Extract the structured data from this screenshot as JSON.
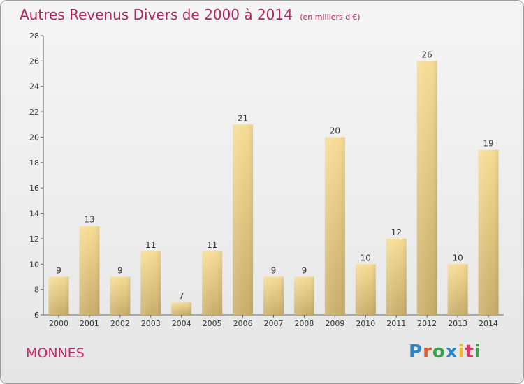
{
  "chart_data": {
    "type": "bar",
    "title": "Autres Revenus Divers de 2000 à 2014",
    "subtitle": "(en milliers d'€)",
    "categories": [
      "2000",
      "2001",
      "2002",
      "2003",
      "2004",
      "2005",
      "2006",
      "2007",
      "2008",
      "2009",
      "2010",
      "2011",
      "2012",
      "2013",
      "2014"
    ],
    "values": [
      9,
      13,
      9,
      11,
      7,
      11,
      21,
      9,
      9,
      20,
      10,
      12,
      26,
      10,
      19
    ],
    "ylim": [
      6,
      28
    ],
    "yticks": [
      6,
      8,
      10,
      12,
      14,
      16,
      18,
      20,
      22,
      24,
      26,
      28
    ],
    "grid": false,
    "colors": {
      "bar_light": "#f6dc94",
      "bar_dark": "#c9ad6a",
      "title": "#b0245c"
    }
  },
  "footer": {
    "location": "MONNES",
    "brand": "Proxiti"
  }
}
